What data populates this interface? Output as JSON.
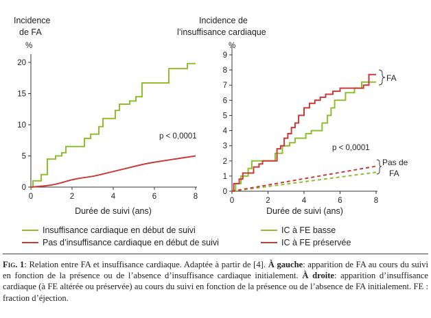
{
  "chart_data": [
    {
      "type": "line",
      "title_lines": [
        "Incidence",
        "de FA"
      ],
      "unit": "%",
      "xlabel": "Durée de suivi (ans)",
      "xticks": [
        0,
        2,
        4,
        6,
        8
      ],
      "yticks": [
        0,
        5,
        10,
        15,
        20
      ],
      "xlim": [
        0,
        8
      ],
      "ylim": [
        0,
        20
      ],
      "annotation": "p < 0,0001",
      "series": [
        {
          "name": "Insuffisance cardiaque en début de suivi",
          "color": "#8dbf2e",
          "style": "step",
          "points": [
            [
              0,
              0
            ],
            [
              0.1,
              0
            ],
            [
              0.1,
              1
            ],
            [
              0.5,
              1
            ],
            [
              0.5,
              2
            ],
            [
              0.8,
              2
            ],
            [
              0.8,
              4.5
            ],
            [
              1.2,
              4.5
            ],
            [
              1.2,
              5
            ],
            [
              1.5,
              5
            ],
            [
              1.5,
              5.5
            ],
            [
              1.7,
              5.5
            ],
            [
              1.7,
              6.5
            ],
            [
              2.6,
              6.5
            ],
            [
              2.6,
              7.8
            ],
            [
              2.9,
              7.8
            ],
            [
              2.9,
              8.5
            ],
            [
              3.3,
              8.5
            ],
            [
              3.3,
              9.7
            ],
            [
              3.5,
              9.7
            ],
            [
              3.5,
              11
            ],
            [
              4.1,
              11
            ],
            [
              4.1,
              12.3
            ],
            [
              4.3,
              12.3
            ],
            [
              4.3,
              13.3
            ],
            [
              4.8,
              13.3
            ],
            [
              4.8,
              13.8
            ],
            [
              5.1,
              13.8
            ],
            [
              5.1,
              14.5
            ],
            [
              5.4,
              14.5
            ],
            [
              5.4,
              16.7
            ],
            [
              6.7,
              16.7
            ],
            [
              6.7,
              19
            ],
            [
              7.6,
              19
            ],
            [
              7.6,
              19.8
            ],
            [
              8,
              19.8
            ]
          ]
        },
        {
          "name": "Pas d’insuffisance cardiaque en début de suivi",
          "color": "#c83a38",
          "style": "smooth",
          "points": [
            [
              0,
              0
            ],
            [
              0.5,
              0.15
            ],
            [
              1,
              0.3
            ],
            [
              1.5,
              0.7
            ],
            [
              2,
              1.2
            ],
            [
              2.5,
              1.5
            ],
            [
              3,
              1.7
            ],
            [
              3.5,
              2.1
            ],
            [
              4,
              2.5
            ],
            [
              4.5,
              2.9
            ],
            [
              5,
              3.3
            ],
            [
              5.5,
              3.7
            ],
            [
              6,
              4
            ],
            [
              6.5,
              4.25
            ],
            [
              7,
              4.5
            ],
            [
              7.5,
              4.75
            ],
            [
              8,
              5
            ]
          ]
        }
      ]
    },
    {
      "type": "line",
      "title_lines": [
        "Incidence de",
        "l’insuffisance cardiaque"
      ],
      "unit": "%",
      "xlabel": "Durée de suivi (ans)",
      "xticks": [
        0,
        2,
        4,
        6,
        8
      ],
      "yticks": [
        0,
        1,
        2,
        3,
        4,
        5,
        6,
        7,
        8,
        9
      ],
      "xlim": [
        0,
        8
      ],
      "ylim": [
        0,
        9
      ],
      "annotation": "p < 0,0001",
      "bracket_fa": "FA",
      "bracket_pas_de_fa": [
        "Pas de",
        "FA"
      ],
      "series": [
        {
          "name": "IC à FE basse",
          "group": "FA",
          "color": "#8dbf2e",
          "style": "step",
          "points": [
            [
              0,
              0
            ],
            [
              0.2,
              0
            ],
            [
              0.2,
              0.5
            ],
            [
              0.5,
              0.5
            ],
            [
              0.5,
              1
            ],
            [
              0.9,
              1
            ],
            [
              0.9,
              1.5
            ],
            [
              1.1,
              1.5
            ],
            [
              1.1,
              2
            ],
            [
              2.4,
              2
            ],
            [
              2.4,
              2.5
            ],
            [
              2.8,
              2.5
            ],
            [
              2.8,
              3
            ],
            [
              3.2,
              3
            ],
            [
              3.2,
              3.2
            ],
            [
              3.5,
              3.2
            ],
            [
              3.5,
              3.5
            ],
            [
              4.1,
              3.5
            ],
            [
              4.1,
              3.8
            ],
            [
              4.4,
              3.8
            ],
            [
              4.4,
              4
            ],
            [
              5,
              4
            ],
            [
              5,
              4.5
            ],
            [
              5.3,
              4.5
            ],
            [
              5.3,
              5
            ],
            [
              5.5,
              5
            ],
            [
              5.5,
              5.5
            ],
            [
              5.7,
              5.5
            ],
            [
              5.7,
              6
            ],
            [
              6.3,
              6
            ],
            [
              6.3,
              6.5
            ],
            [
              6.8,
              6.5
            ],
            [
              6.8,
              6.8
            ],
            [
              7.2,
              6.8
            ],
            [
              7.2,
              7.2
            ],
            [
              8,
              7.2
            ]
          ]
        },
        {
          "name": "IC à FE préservée",
          "group": "FA",
          "color": "#c83a38",
          "style": "step",
          "points": [
            [
              0,
              0
            ],
            [
              0.1,
              0
            ],
            [
              0.1,
              0.5
            ],
            [
              0.4,
              0.5
            ],
            [
              0.4,
              0.8
            ],
            [
              0.6,
              0.8
            ],
            [
              0.6,
              1.2
            ],
            [
              1.2,
              1.2
            ],
            [
              1.2,
              1.6
            ],
            [
              1.5,
              1.6
            ],
            [
              1.5,
              1.8
            ],
            [
              1.7,
              1.8
            ],
            [
              1.7,
              2
            ],
            [
              2.5,
              2
            ],
            [
              2.5,
              2.8
            ],
            [
              2.7,
              2.8
            ],
            [
              2.7,
              3
            ],
            [
              2.9,
              3
            ],
            [
              2.9,
              3.5
            ],
            [
              3.1,
              3.5
            ],
            [
              3.1,
              3.8
            ],
            [
              3.3,
              3.8
            ],
            [
              3.3,
              4.2
            ],
            [
              3.5,
              4.2
            ],
            [
              3.5,
              4.5
            ],
            [
              3.7,
              4.5
            ],
            [
              3.7,
              5
            ],
            [
              4,
              5
            ],
            [
              4,
              5.5
            ],
            [
              4.3,
              5.5
            ],
            [
              4.3,
              5.8
            ],
            [
              4.6,
              5.8
            ],
            [
              4.6,
              6
            ],
            [
              4.9,
              6
            ],
            [
              4.9,
              6.2
            ],
            [
              5.2,
              6.2
            ],
            [
              5.2,
              6.4
            ],
            [
              5.6,
              6.4
            ],
            [
              5.6,
              6.6
            ],
            [
              6,
              6.6
            ],
            [
              6,
              6.8
            ],
            [
              7.3,
              6.8
            ],
            [
              7.3,
              7
            ],
            [
              7.6,
              7
            ],
            [
              7.6,
              7.7
            ],
            [
              8,
              7.7
            ]
          ]
        },
        {
          "name": "IC à FE basse",
          "group": "Pas de FA",
          "color": "#8dbf2e",
          "style": "dashed",
          "points": [
            [
              0,
              0
            ],
            [
              8,
              1.25
            ]
          ]
        },
        {
          "name": "IC à FE préservée",
          "group": "Pas de FA",
          "color": "#c83a38",
          "style": "dashed",
          "points": [
            [
              0,
              0
            ],
            [
              8,
              1.65
            ]
          ]
        }
      ]
    }
  ],
  "legend_left": [
    {
      "label": "Insuffisance cardiaque en début de suivi",
      "color": "#8dbf2e"
    },
    {
      "label": "Pas d’insuffisance cardiaque en début de suivi",
      "color": "#c83a38"
    }
  ],
  "legend_right": [
    {
      "label": "IC à FE basse",
      "color": "#8dbf2e"
    },
    {
      "label": "IC à FE préservée",
      "color": "#c83a38"
    }
  ],
  "caption": {
    "fig_label": "Fig. 1",
    "text_1": ": Relation entre FA et insuffisance cardiaque. Adaptée à partir de [4]. ",
    "left_label": "À gauche",
    "text_2": ": apparition de FA au cours du suivi en fonction de la présence ou de l’absence d’insuffisance cardiaque initialement. ",
    "right_label": "À droite",
    "text_3": ": apparition d’insuffisance cardiaque (à FE altérée ou préservée) au cours du suivi en fonction de la présence ou de l’absence de FA initialement. FE : fraction d’éjection."
  }
}
